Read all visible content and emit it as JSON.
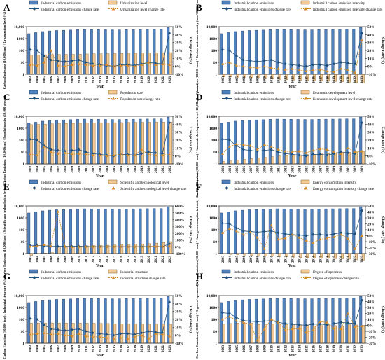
{
  "colors": {
    "bar_emissions_fill": "#4f81bd",
    "bar_emissions_edge": "#1f3864",
    "bar_second_fill": "#f5c993",
    "bar_second_edge": "#7f5f2a",
    "line_emissions": "#1f4e79",
    "line_second": "#d08a2a"
  },
  "shared": {
    "xlabel": "Year",
    "right_ylabel": "Change rate (%)",
    "years": [
      "2003",
      "2004",
      "2005",
      "2006",
      "2007",
      "2008",
      "2009",
      "2010",
      "2011",
      "2012",
      "2013",
      "2014",
      "2015",
      "2016",
      "2017",
      "2018",
      "2019",
      "2020",
      "2021",
      "2022",
      "2023"
    ],
    "left_ticks": [
      "10,000",
      "1000",
      "100",
      "10",
      "1"
    ],
    "right_ticks_standard": [
      "50%",
      "40%",
      "30%",
      "20%",
      "10%",
      "0%",
      "-10%"
    ],
    "right_ticks_percent600": [
      "600%",
      "500%",
      "400%",
      "300%",
      "200%",
      "100%",
      "0%",
      "-100%"
    ],
    "right_ticks_e": [
      "600%",
      "500%",
      "400%",
      "300%",
      "200%",
      "100%",
      "0%",
      "-100%"
    ],
    "right_ticks_f": [
      "50%",
      "40%",
      "30%",
      "20%",
      "10%",
      "0%",
      "-10%",
      "-20%",
      "-30%"
    ],
    "right_ticks_h": [
      "50%",
      "40%",
      "30%",
      "20%",
      "10%",
      "0%",
      "-10%",
      "-20%",
      "-30%"
    ]
  },
  "chart_data": [
    {
      "panel": "A",
      "type": "bar",
      "ylabel": "Carbon Emissions (10,000 tons) / Urbanization level (%)",
      "legend": [
        "Industrial carbon emissions",
        "Urbanization level",
        "Industrial carbon emissions change rate",
        "Urbanization level change rate"
      ],
      "left_scale": "log",
      "ylim_left": [
        1,
        10000
      ],
      "ylim_right": [
        -10,
        50
      ],
      "series": [
        {
          "name": "Industrial carbon emissions",
          "values": [
            2600,
            3200,
            3900,
            4400,
            4800,
            5000,
            5200,
            5600,
            5800,
            5700,
            5600,
            5500,
            5400,
            5400,
            5600,
            5700,
            5800,
            5900,
            6000,
            6100,
            8600
          ]
        },
        {
          "name": "Urbanization level",
          "values": [
            41,
            42,
            44,
            45,
            46,
            47,
            48,
            49,
            51,
            52,
            53,
            54,
            55,
            57,
            58,
            59,
            60,
            62,
            63,
            64,
            66
          ]
        },
        {
          "name": "Industrial carbon emissions change rate",
          "values": [
            21,
            20,
            13,
            8,
            7,
            6,
            7,
            8,
            5,
            3,
            2,
            1,
            0,
            2,
            2,
            1,
            3,
            5,
            4,
            3,
            42
          ]
        },
        {
          "name": "Urbanization level change rate",
          "values": [
            2,
            1,
            5,
            20,
            1,
            0,
            2,
            3,
            2,
            1,
            1,
            2,
            0,
            1,
            1,
            0,
            2,
            5,
            2,
            3,
            2
          ]
        }
      ]
    },
    {
      "panel": "B",
      "type": "bar",
      "ylabel": "Carbon Emissions (10,000 tons) / Carbon emission intensity (tons/10,000 yuan)",
      "legend": [
        "Industrial carbon emissions",
        "Industrial carbon emission intensity",
        "Industrial carbon emissions change rate",
        "Industrial carbon emission intensity change rate"
      ],
      "left_scale": "log",
      "ylim_left": [
        1,
        10000
      ],
      "ylim_right": [
        -10,
        50
      ],
      "series": [
        {
          "name": "Industrial carbon emissions",
          "values": [
            2600,
            3200,
            3900,
            4400,
            4800,
            5000,
            5200,
            5600,
            5800,
            5700,
            5600,
            5500,
            5400,
            5400,
            5600,
            5700,
            5800,
            5900,
            6000,
            6100,
            8600
          ]
        },
        {
          "name": "Industrial carbon emission intensity",
          "values": [
            0.6,
            0.6,
            0.5,
            0.5,
            0.45,
            0.45,
            0.42,
            0.4,
            0.37,
            0.35,
            0.33,
            0.32,
            0.3,
            0.28,
            0.27,
            0.26,
            0.25,
            0.24,
            0.22,
            0.2,
            0.19
          ]
        },
        {
          "name": "Industrial carbon emissions change rate",
          "values": [
            21,
            20,
            13,
            8,
            7,
            6,
            7,
            8,
            5,
            3,
            2,
            1,
            0,
            2,
            2,
            1,
            3,
            5,
            4,
            3,
            42
          ]
        },
        {
          "name": "Industrial carbon emission intensity change rate",
          "values": [
            3,
            5,
            1,
            0,
            -1,
            -2,
            0,
            -2,
            -3,
            -4,
            -3,
            -5,
            -6,
            -5,
            -4,
            -6,
            -7,
            -3,
            -5,
            -8,
            33
          ]
        }
      ]
    },
    {
      "panel": "C",
      "type": "bar",
      "ylabel": "Carbon Emissions (10,000 tons) / Population size (10,000 person)",
      "legend": [
        "Industrial carbon emissions",
        "Population size",
        "Industrial carbon emissions change rate",
        "Population size change rate"
      ],
      "left_scale": "log",
      "ylim_left": [
        1,
        10000
      ],
      "ylim_right": [
        -10,
        50
      ],
      "series": [
        {
          "name": "Industrial carbon emissions",
          "values": [
            2600,
            3200,
            3900,
            4400,
            4800,
            5000,
            5200,
            5600,
            5800,
            5700,
            5600,
            5500,
            5400,
            5400,
            5600,
            5700,
            5800,
            5900,
            6000,
            6100,
            8600
          ]
        },
        {
          "name": "Population size",
          "values": [
            2000,
            2100,
            2200,
            2300,
            2400,
            2500,
            2550,
            2600,
            2700,
            2750,
            2800,
            2850,
            2900,
            2950,
            3000,
            3050,
            3100,
            3150,
            3200,
            3250,
            3300
          ]
        },
        {
          "name": "Industrial carbon emissions change rate",
          "values": [
            21,
            20,
            13,
            8,
            7,
            6,
            7,
            8,
            5,
            3,
            2,
            1,
            0,
            2,
            2,
            1,
            3,
            5,
            4,
            3,
            42
          ]
        },
        {
          "name": "Population size change rate",
          "values": [
            2,
            1,
            12,
            5,
            3,
            4,
            2,
            3,
            2,
            1,
            1,
            0,
            1,
            2,
            1,
            1,
            8,
            2,
            1,
            1,
            2
          ]
        }
      ]
    },
    {
      "panel": "D",
      "type": "bar",
      "ylabel": "Carbon Emissions (10,000 tons) / Economic development level (10,000 yuan/person)",
      "legend": [
        "Industrial carbon emissions",
        "Economic development level",
        "Industrial carbon emissions change rate",
        "Economic development level change rate"
      ],
      "left_scale": "log",
      "ylim_left": [
        1,
        10000
      ],
      "ylim_right": [
        -10,
        50
      ],
      "series": [
        {
          "name": "Industrial carbon emissions",
          "values": [
            2600,
            3200,
            3900,
            4400,
            4800,
            5000,
            5200,
            5600,
            5800,
            5700,
            5600,
            5500,
            5400,
            5400,
            5600,
            5700,
            5800,
            5900,
            6000,
            6100,
            8600
          ]
        },
        {
          "name": "Economic development level",
          "values": [
            1.6,
            1.8,
            2.1,
            2.4,
            2.8,
            3.2,
            3.5,
            4,
            4.6,
            5,
            5.4,
            5.8,
            6.1,
            6.5,
            7,
            7.6,
            8.2,
            8.5,
            9.5,
            10.2,
            10.8
          ]
        },
        {
          "name": "Industrial carbon emissions change rate",
          "values": [
            21,
            20,
            13,
            8,
            7,
            6,
            7,
            8,
            5,
            3,
            2,
            1,
            0,
            2,
            2,
            1,
            3,
            5,
            4,
            3,
            42
          ]
        },
        {
          "name": "Economic development level change rate",
          "values": [
            3,
            12,
            15,
            14,
            13,
            8,
            14,
            12,
            8,
            6,
            5,
            6,
            4,
            7,
            9,
            8,
            5,
            3,
            10,
            5,
            6
          ]
        }
      ]
    },
    {
      "panel": "E",
      "type": "bar",
      "ylabel": "Carbon Emissions (10,000 tons) / Scientific and technological level (%)",
      "legend": [
        "Industrial carbon emissions",
        "Scientific and technological level",
        "Industrial carbon emissions change rate",
        "Scientific and technological level change rate"
      ],
      "left_scale": "log",
      "ylim_left": [
        1,
        10000
      ],
      "ylim_right": [
        -100,
        600
      ],
      "series": [
        {
          "name": "Industrial carbon emissions",
          "values": [
            2600,
            3200,
            3900,
            4400,
            4800,
            5000,
            5200,
            5600,
            5800,
            5700,
            5600,
            5500,
            5400,
            5400,
            5600,
            5700,
            5800,
            5900,
            6000,
            6100,
            8600
          ]
        },
        {
          "name": "Scientific and technological level",
          "values": [
            0.7,
            0.9,
            1.1,
            1.2,
            3.5,
            3.8,
            4,
            4.2,
            4.5,
            4.7,
            4.8,
            5,
            5.2,
            5.5,
            5.8,
            6,
            6.3,
            6.8,
            7.5,
            8.5,
            10
          ]
        },
        {
          "name": "Industrial carbon emissions change rate",
          "values": [
            21,
            20,
            13,
            8,
            7,
            6,
            7,
            8,
            5,
            3,
            2,
            1,
            0,
            2,
            2,
            1,
            3,
            5,
            4,
            3,
            42
          ]
        },
        {
          "name": "Scientific and technological level change rate",
          "values": [
            5,
            10,
            30,
            10,
            520,
            5,
            -2,
            0,
            3,
            2,
            1,
            2,
            3,
            4,
            2,
            3,
            1,
            5,
            7,
            10,
            12
          ]
        }
      ]
    },
    {
      "panel": "F",
      "type": "bar",
      "ylabel": "Carbon Emissions (10,000 tons) / Energy consumption intensity (tons/10,000 yuan)",
      "legend": [
        "Industrial carbon emissions",
        "Energy consumption intensity",
        "Industrial carbon emissions change rate",
        "Energy consumption intensity change rate"
      ],
      "left_scale": "log",
      "ylim_left": [
        1,
        10000
      ],
      "ylim_right": [
        -30,
        50
      ],
      "series": [
        {
          "name": "Industrial carbon emissions",
          "values": [
            2600,
            3200,
            3900,
            4400,
            4800,
            5000,
            5200,
            5600,
            5800,
            5700,
            5600,
            5500,
            5400,
            5400,
            5600,
            5700,
            5800,
            5900,
            6000,
            6100,
            8600
          ]
        },
        {
          "name": "Energy consumption intensity",
          "values": [
            0.9,
            0.85,
            0.8,
            0.75,
            0.7,
            0.65,
            0.62,
            0.6,
            0.55,
            0.52,
            0.5,
            0.47,
            0.45,
            0.43,
            0.41,
            0.4,
            0.38,
            0.36,
            0.34,
            0.3,
            0.28
          ]
        },
        {
          "name": "Industrial carbon emissions change rate",
          "values": [
            21,
            20,
            13,
            8,
            7,
            6,
            7,
            8,
            5,
            3,
            2,
            1,
            0,
            2,
            2,
            1,
            3,
            5,
            4,
            3,
            42
          ]
        },
        {
          "name": "Energy consumption intensity change rate",
          "values": [
            5,
            12,
            8,
            2,
            6,
            -3,
            -22,
            18,
            -6,
            -4,
            2,
            -3,
            -8,
            -12,
            -6,
            -4,
            -2,
            2,
            -5,
            -22,
            0
          ]
        }
      ]
    },
    {
      "panel": "G",
      "type": "bar",
      "ylabel": "Carbon Emissions (10,000 tons) / Industrial structure (%)",
      "legend": [
        "Industrial carbon emissions",
        "Industrial structure",
        "Industrial carbon emissions change rate",
        "Industrial structure change rate"
      ],
      "left_scale": "log",
      "ylim_left": [
        1,
        10000
      ],
      "ylim_right": [
        -10,
        50
      ],
      "series": [
        {
          "name": "Industrial carbon emissions",
          "values": [
            2600,
            3200,
            3900,
            4400,
            4800,
            5000,
            5200,
            5600,
            5800,
            5700,
            5600,
            5500,
            5400,
            5400,
            5600,
            5700,
            5800,
            5900,
            6000,
            6100,
            8600
          ]
        },
        {
          "name": "Industrial structure",
          "values": [
            48,
            49,
            50,
            50,
            50,
            49,
            48,
            49,
            48,
            47,
            46,
            45,
            43,
            42,
            41,
            40,
            40,
            39,
            40,
            40,
            39
          ]
        },
        {
          "name": "Industrial carbon emissions change rate",
          "values": [
            21,
            20,
            13,
            8,
            7,
            6,
            7,
            8,
            5,
            3,
            2,
            1,
            0,
            2,
            2,
            1,
            3,
            5,
            4,
            3,
            42
          ]
        },
        {
          "name": "Industrial structure change rate",
          "values": [
            1,
            2,
            3,
            1,
            2,
            0,
            -1,
            2,
            -1,
            -2,
            -2,
            -3,
            -4,
            -3,
            -4,
            -2,
            0,
            -4,
            2,
            1,
            -1
          ]
        }
      ]
    },
    {
      "panel": "H",
      "type": "bar",
      "ylabel": "Carbon Emissions (10,000 tons) / Degree of openness (%)",
      "legend": [
        "Industrial carbon emissions",
        "Degree of openness",
        "Industrial carbon emissions change rate",
        "Degree of openness change rate"
      ],
      "left_scale": "log",
      "ylim_left": [
        1,
        10000
      ],
      "ylim_right": [
        -30,
        50
      ],
      "series": [
        {
          "name": "Industrial carbon emissions",
          "values": [
            2600,
            3200,
            3900,
            4400,
            4800,
            5000,
            5200,
            5600,
            5800,
            5700,
            5600,
            5500,
            5400,
            5400,
            5600,
            5700,
            5800,
            5900,
            6000,
            6100,
            8600
          ]
        },
        {
          "name": "Degree of openness",
          "values": [
            40,
            45,
            48,
            50,
            50,
            38,
            35,
            40,
            42,
            38,
            36,
            34,
            30,
            28,
            30,
            32,
            30,
            28,
            35,
            34,
            33
          ]
        },
        {
          "name": "Industrial carbon emissions change rate",
          "values": [
            21,
            20,
            13,
            8,
            7,
            6,
            7,
            8,
            5,
            3,
            2,
            1,
            0,
            2,
            2,
            1,
            3,
            5,
            4,
            3,
            42
          ]
        },
        {
          "name": "Degree of openness change rate",
          "values": [
            10,
            15,
            8,
            5,
            2,
            -25,
            -6,
            10,
            5,
            -8,
            -6,
            -5,
            -12,
            -8,
            6,
            5,
            -5,
            -6,
            20,
            -3,
            -1
          ]
        }
      ]
    }
  ]
}
